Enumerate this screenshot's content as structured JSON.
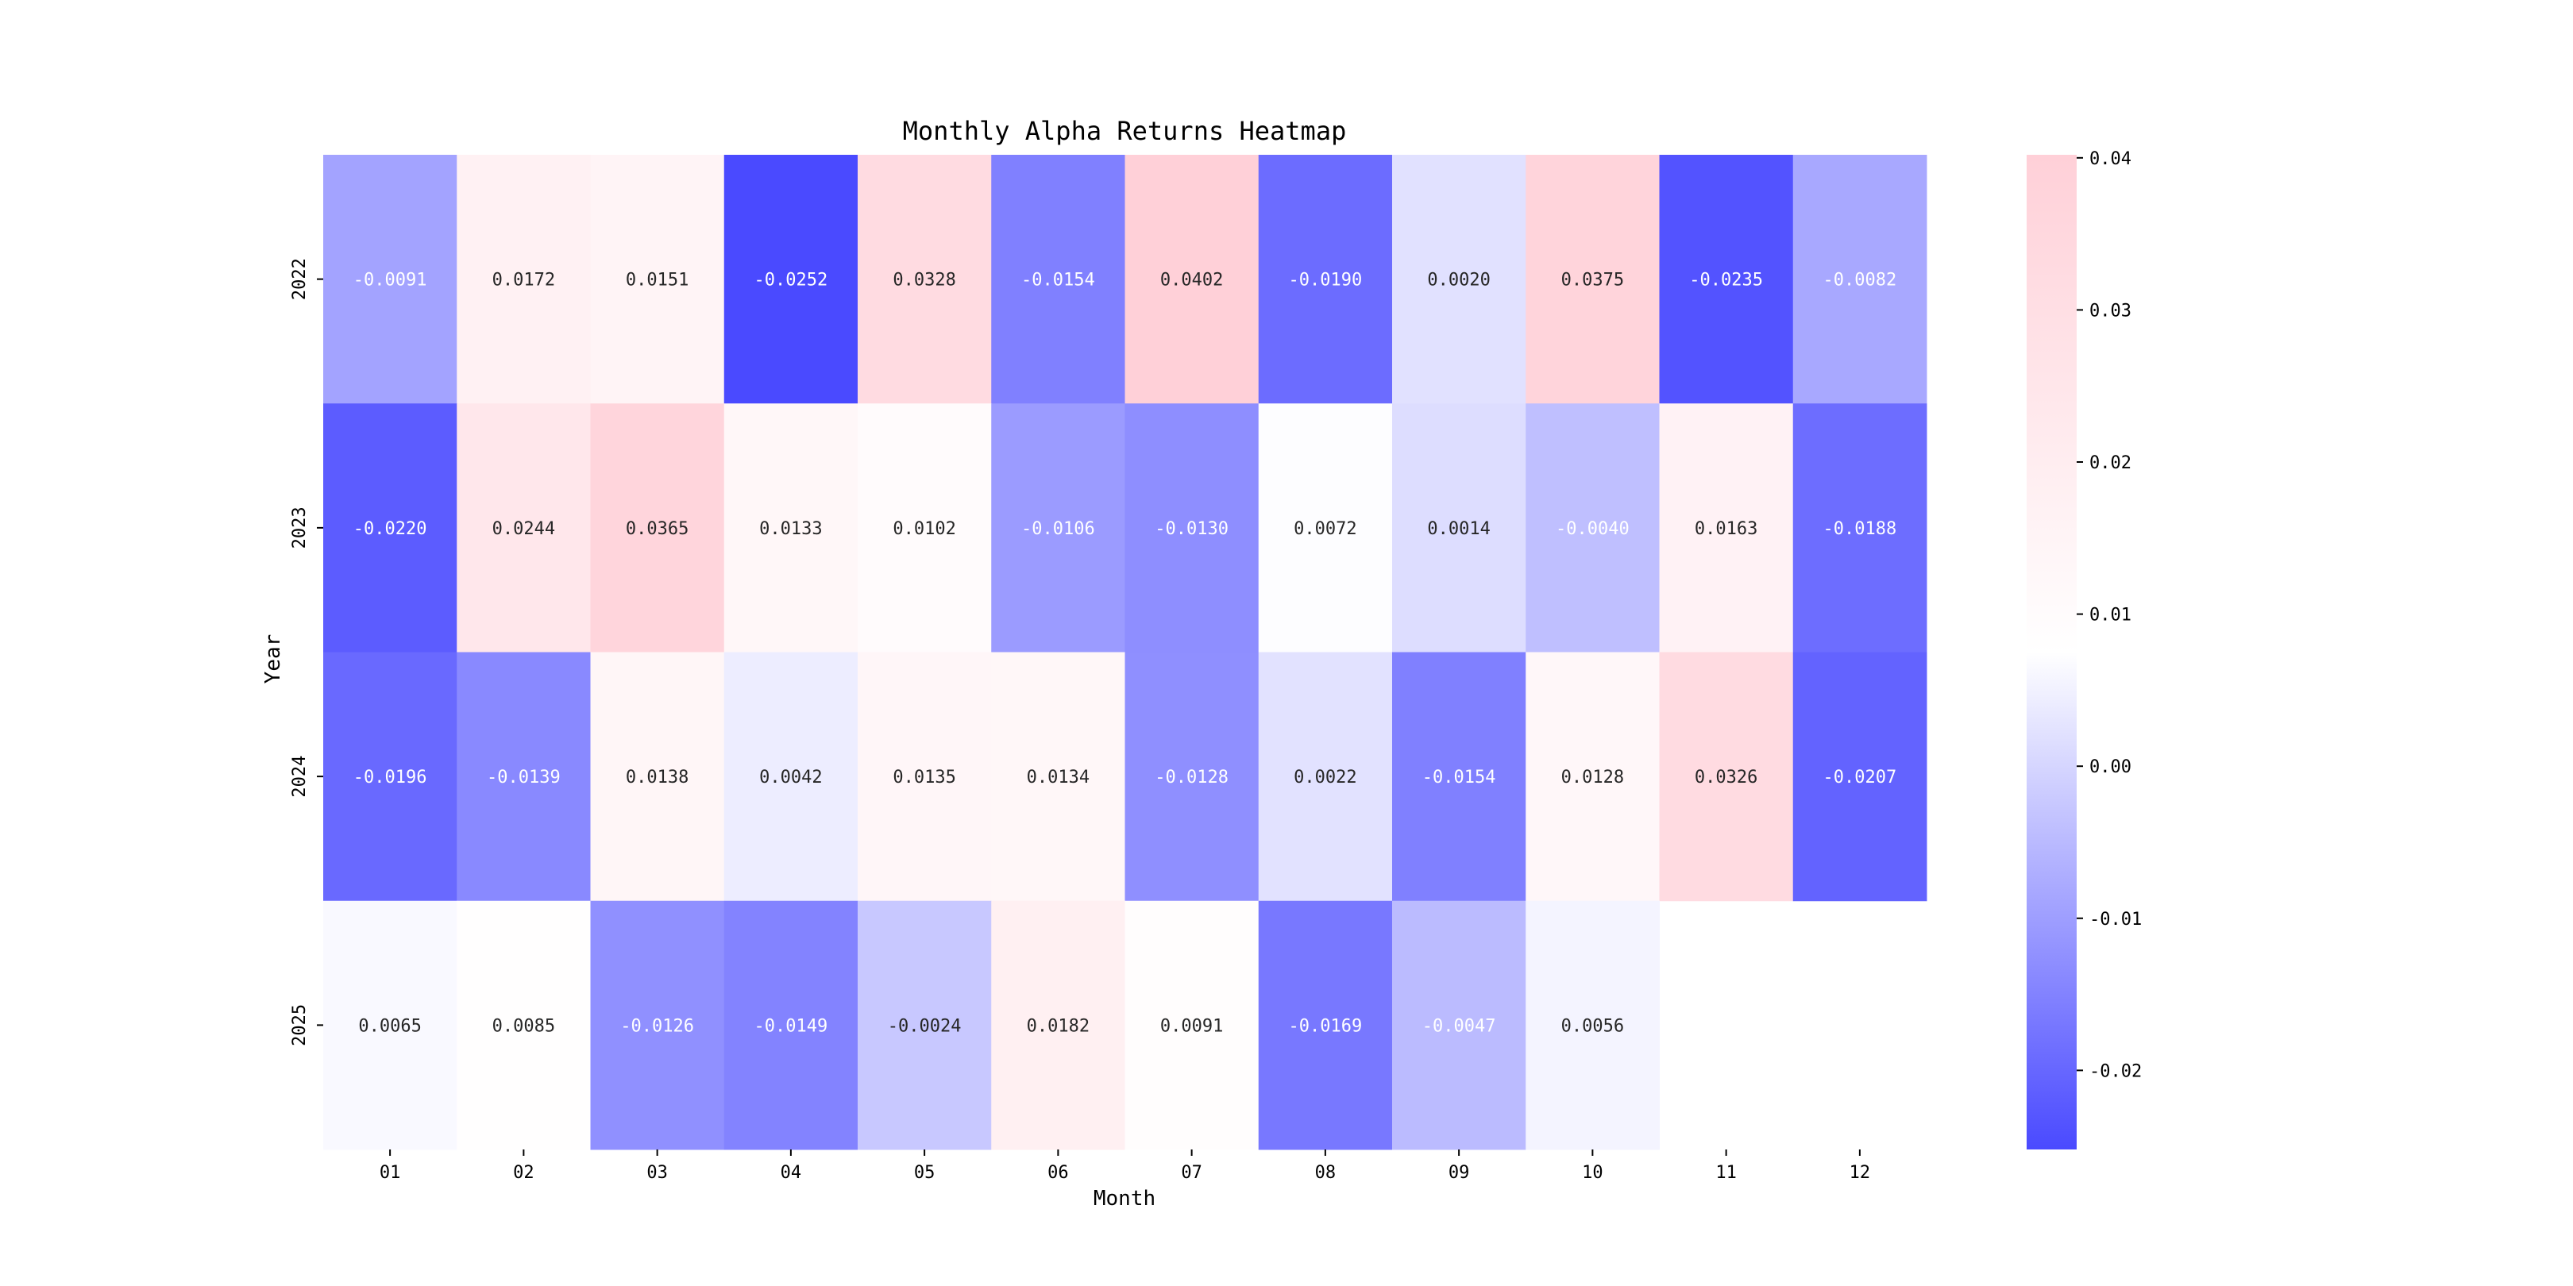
{
  "chart_data": {
    "type": "heatmap",
    "title": "Monthly Alpha Returns Heatmap",
    "xlabel": "Month",
    "ylabel": "Year",
    "x_categories": [
      "01",
      "02",
      "03",
      "04",
      "05",
      "06",
      "07",
      "08",
      "09",
      "10",
      "11",
      "12"
    ],
    "y_categories": [
      "2022",
      "2023",
      "2024",
      "2025"
    ],
    "values": [
      [
        -0.0091,
        0.0172,
        0.0151,
        -0.0252,
        0.0328,
        -0.0154,
        0.0402,
        -0.019,
        0.002,
        0.0375,
        -0.0235,
        -0.0082
      ],
      [
        -0.022,
        0.0244,
        0.0365,
        0.0133,
        0.0102,
        -0.0106,
        -0.013,
        0.0072,
        0.0014,
        -0.004,
        0.0163,
        -0.0188
      ],
      [
        -0.0196,
        -0.0139,
        0.0138,
        0.0042,
        0.0135,
        0.0134,
        -0.0128,
        0.0022,
        -0.0154,
        0.0128,
        0.0326,
        -0.0207
      ],
      [
        0.0065,
        0.0085,
        -0.0126,
        -0.0149,
        -0.0024,
        0.0182,
        0.0091,
        -0.0169,
        -0.0047,
        0.0056,
        null,
        null
      ]
    ],
    "value_format": "4 decimals",
    "colorbar": {
      "vmin": -0.0252,
      "vmax": 0.0402,
      "ticks": [
        -0.02,
        -0.01,
        0.0,
        0.01,
        0.02,
        0.03,
        0.04
      ],
      "tick_labels": [
        "-0.02",
        "-0.01",
        "0.00",
        "0.01",
        "0.02",
        "0.03",
        "0.04"
      ],
      "low_color": "#4a4aff",
      "mid_color": "#ffffff",
      "high_color": "#ffd0d8"
    },
    "grid": false,
    "legend": "colorbar right"
  }
}
